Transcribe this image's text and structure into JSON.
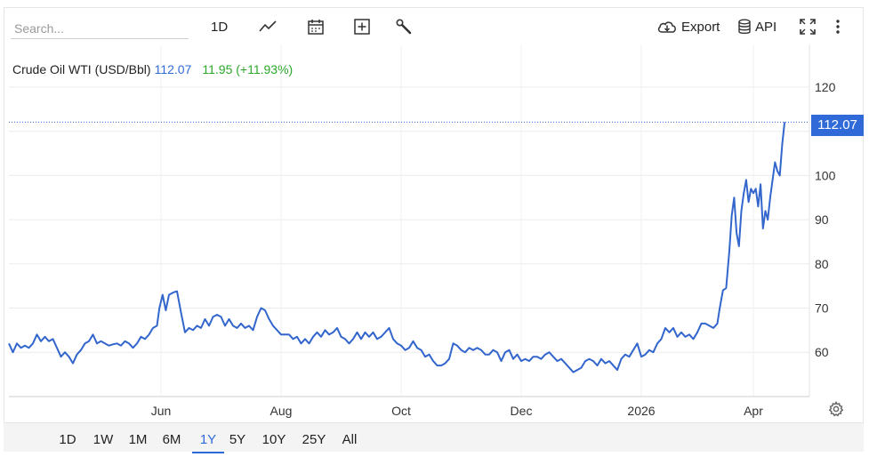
{
  "toolbar": {
    "search_placeholder": "Search...",
    "interval_label": "1D",
    "export_label": "Export",
    "api_label": "API"
  },
  "header": {
    "name": "Crude Oil WTI (USD/Bbl)",
    "last": "112.07",
    "change": "11.95 (+11.93%)"
  },
  "ranges": [
    "1D",
    "1W",
    "1M",
    "6M",
    "1Y",
    "5Y",
    "10Y",
    "25Y",
    "All"
  ],
  "active_range": "1Y",
  "colors": {
    "line": "#3366cc",
    "accent": "#2f6ad8",
    "change": "#2aa82a"
  },
  "chart_data": {
    "type": "line",
    "title": "",
    "xlabel": "",
    "ylabel": "",
    "ylim": [
      52,
      127
    ],
    "yticks": [
      60,
      70,
      80,
      90,
      100,
      120
    ],
    "xticks": [
      {
        "label": "Jun",
        "x": 0.19
      },
      {
        "label": "Aug",
        "x": 0.34
      },
      {
        "label": "Oct",
        "x": 0.49
      },
      {
        "label": "Dec",
        "x": 0.64
      },
      {
        "label": "2026",
        "x": 0.79
      },
      {
        "label": "Apr",
        "x": 0.93
      }
    ],
    "last_value": 112.07,
    "series": [
      {
        "values": [
          [
            0.0,
            62.0
          ],
          [
            0.005,
            60.0
          ],
          [
            0.01,
            62.0
          ],
          [
            0.015,
            61.0
          ],
          [
            0.02,
            61.5
          ],
          [
            0.025,
            61.0
          ],
          [
            0.03,
            62.0
          ],
          [
            0.035,
            64.0
          ],
          [
            0.04,
            62.5
          ],
          [
            0.045,
            63.5
          ],
          [
            0.05,
            62.5
          ],
          [
            0.055,
            63.0
          ],
          [
            0.06,
            61.0
          ],
          [
            0.065,
            59.0
          ],
          [
            0.07,
            60.0
          ],
          [
            0.075,
            59.0
          ],
          [
            0.08,
            57.5
          ],
          [
            0.085,
            59.5
          ],
          [
            0.09,
            60.5
          ],
          [
            0.095,
            62.0
          ],
          [
            0.1,
            62.5
          ],
          [
            0.105,
            64.0
          ],
          [
            0.11,
            62.0
          ],
          [
            0.115,
            62.5
          ],
          [
            0.12,
            62.0
          ],
          [
            0.125,
            61.5
          ],
          [
            0.13,
            61.8
          ],
          [
            0.135,
            62.0
          ],
          [
            0.14,
            61.5
          ],
          [
            0.145,
            62.5
          ],
          [
            0.15,
            62.0
          ],
          [
            0.155,
            61.0
          ],
          [
            0.16,
            62.0
          ],
          [
            0.165,
            63.5
          ],
          [
            0.17,
            63.0
          ],
          [
            0.175,
            64.0
          ],
          [
            0.18,
            65.5
          ],
          [
            0.185,
            66.0
          ],
          [
            0.188,
            70.0
          ],
          [
            0.192,
            73.0
          ],
          [
            0.196,
            69.5
          ],
          [
            0.2,
            73.0
          ],
          [
            0.205,
            73.5
          ],
          [
            0.21,
            73.8
          ],
          [
            0.215,
            69.0
          ],
          [
            0.22,
            64.5
          ],
          [
            0.225,
            65.5
          ],
          [
            0.23,
            65.0
          ],
          [
            0.235,
            66.0
          ],
          [
            0.24,
            65.5
          ],
          [
            0.245,
            67.5
          ],
          [
            0.25,
            66.0
          ],
          [
            0.255,
            68.0
          ],
          [
            0.26,
            68.5
          ],
          [
            0.265,
            68.0
          ],
          [
            0.27,
            66.0
          ],
          [
            0.275,
            67.5
          ],
          [
            0.28,
            66.0
          ],
          [
            0.285,
            65.5
          ],
          [
            0.29,
            66.5
          ],
          [
            0.295,
            65.5
          ],
          [
            0.3,
            66.0
          ],
          [
            0.305,
            65.0
          ],
          [
            0.31,
            68.0
          ],
          [
            0.315,
            70.0
          ],
          [
            0.32,
            69.5
          ],
          [
            0.325,
            67.5
          ],
          [
            0.33,
            66.0
          ],
          [
            0.335,
            65.0
          ],
          [
            0.34,
            64.0
          ],
          [
            0.345,
            64.0
          ],
          [
            0.35,
            64.0
          ],
          [
            0.355,
            63.0
          ],
          [
            0.36,
            63.5
          ],
          [
            0.365,
            62.0
          ],
          [
            0.37,
            63.0
          ],
          [
            0.375,
            62.0
          ],
          [
            0.38,
            63.5
          ],
          [
            0.385,
            64.5
          ],
          [
            0.39,
            63.5
          ],
          [
            0.395,
            65.0
          ],
          [
            0.4,
            64.0
          ],
          [
            0.405,
            64.5
          ],
          [
            0.41,
            65.5
          ],
          [
            0.415,
            63.5
          ],
          [
            0.42,
            63.0
          ],
          [
            0.425,
            62.0
          ],
          [
            0.43,
            63.0
          ],
          [
            0.435,
            64.5
          ],
          [
            0.44,
            63.0
          ],
          [
            0.445,
            64.5
          ],
          [
            0.45,
            63.5
          ],
          [
            0.455,
            64.5
          ],
          [
            0.46,
            63.0
          ],
          [
            0.465,
            63.5
          ],
          [
            0.47,
            64.5
          ],
          [
            0.475,
            65.5
          ],
          [
            0.48,
            63.0
          ],
          [
            0.485,
            62.0
          ],
          [
            0.49,
            61.5
          ],
          [
            0.495,
            60.5
          ],
          [
            0.5,
            61.0
          ],
          [
            0.505,
            62.5
          ],
          [
            0.51,
            61.0
          ],
          [
            0.515,
            60.5
          ],
          [
            0.52,
            59.0
          ],
          [
            0.525,
            59.5
          ],
          [
            0.53,
            58.0
          ],
          [
            0.535,
            57.0
          ],
          [
            0.54,
            57.0
          ],
          [
            0.545,
            57.5
          ],
          [
            0.55,
            58.5
          ],
          [
            0.555,
            62.0
          ],
          [
            0.56,
            61.5
          ],
          [
            0.565,
            60.5
          ],
          [
            0.57,
            60.0
          ],
          [
            0.575,
            61.0
          ],
          [
            0.58,
            60.5
          ],
          [
            0.585,
            61.0
          ],
          [
            0.59,
            60.5
          ],
          [
            0.595,
            59.5
          ],
          [
            0.6,
            59.5
          ],
          [
            0.605,
            60.5
          ],
          [
            0.61,
            60.0
          ],
          [
            0.615,
            58.0
          ],
          [
            0.62,
            60.0
          ],
          [
            0.625,
            60.5
          ],
          [
            0.63,
            58.5
          ],
          [
            0.635,
            59.5
          ],
          [
            0.64,
            58.0
          ],
          [
            0.645,
            58.5
          ],
          [
            0.65,
            58.0
          ],
          [
            0.655,
            59.0
          ],
          [
            0.66,
            59.0
          ],
          [
            0.665,
            58.5
          ],
          [
            0.67,
            59.5
          ],
          [
            0.675,
            60.0
          ],
          [
            0.68,
            59.0
          ],
          [
            0.685,
            58.0
          ],
          [
            0.69,
            58.5
          ],
          [
            0.695,
            57.5
          ],
          [
            0.7,
            56.5
          ],
          [
            0.705,
            55.5
          ],
          [
            0.71,
            56.0
          ],
          [
            0.715,
            56.5
          ],
          [
            0.72,
            58.0
          ],
          [
            0.725,
            58.5
          ],
          [
            0.73,
            58.0
          ],
          [
            0.735,
            57.0
          ],
          [
            0.74,
            58.5
          ],
          [
            0.745,
            57.5
          ],
          [
            0.75,
            58.0
          ],
          [
            0.755,
            57.0
          ],
          [
            0.76,
            56.0
          ],
          [
            0.765,
            58.5
          ],
          [
            0.77,
            59.5
          ],
          [
            0.775,
            59.0
          ],
          [
            0.78,
            60.5
          ],
          [
            0.785,
            62.0
          ],
          [
            0.79,
            59.0
          ],
          [
            0.795,
            59.5
          ],
          [
            0.8,
            60.5
          ],
          [
            0.805,
            60.0
          ],
          [
            0.81,
            62.0
          ],
          [
            0.815,
            63.0
          ],
          [
            0.82,
            65.5
          ],
          [
            0.825,
            64.5
          ],
          [
            0.83,
            65.5
          ],
          [
            0.835,
            63.5
          ],
          [
            0.84,
            64.5
          ],
          [
            0.845,
            63.5
          ],
          [
            0.85,
            64.0
          ],
          [
            0.855,
            63.0
          ],
          [
            0.86,
            64.5
          ],
          [
            0.865,
            66.5
          ],
          [
            0.87,
            66.5
          ],
          [
            0.875,
            66.0
          ],
          [
            0.88,
            65.5
          ],
          [
            0.885,
            66.5
          ],
          [
            0.888,
            70.0
          ],
          [
            0.892,
            74.0
          ],
          [
            0.896,
            74.5
          ],
          [
            0.9,
            83.0
          ],
          [
            0.903,
            91.0
          ],
          [
            0.906,
            95.0
          ],
          [
            0.909,
            87.0
          ],
          [
            0.912,
            84.0
          ],
          [
            0.915,
            92.0
          ],
          [
            0.918,
            96.0
          ],
          [
            0.921,
            99.0
          ],
          [
            0.924,
            94.0
          ],
          [
            0.927,
            97.0
          ],
          [
            0.93,
            96.0
          ],
          [
            0.933,
            97.0
          ],
          [
            0.936,
            93.0
          ],
          [
            0.939,
            98.0
          ],
          [
            0.942,
            88.0
          ],
          [
            0.945,
            92.0
          ],
          [
            0.948,
            90.0
          ],
          [
            0.951,
            95.0
          ],
          [
            0.954,
            99.0
          ],
          [
            0.957,
            103.0
          ],
          [
            0.96,
            101.0
          ],
          [
            0.963,
            100.0
          ],
          [
            0.966,
            107.0
          ],
          [
            0.969,
            112.07
          ]
        ]
      }
    ]
  }
}
